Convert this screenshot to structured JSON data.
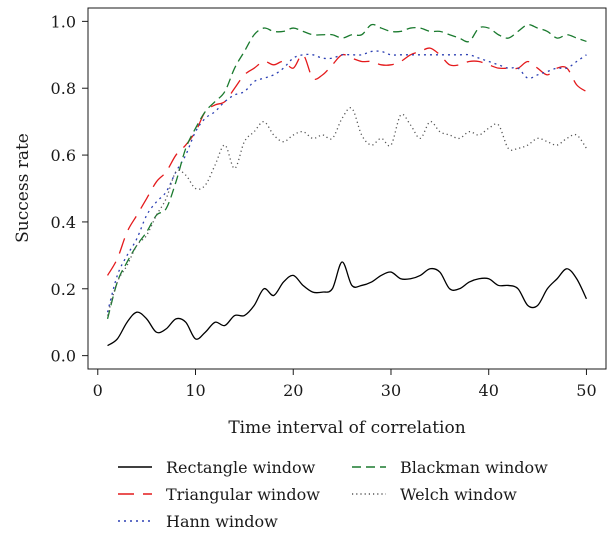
{
  "chart_data": {
    "type": "line",
    "title": "",
    "xlabel": "Time interval of correlation",
    "ylabel": "Success rate",
    "xlim": [
      -1,
      52
    ],
    "ylim": [
      -0.04,
      1.04
    ],
    "xticks": [
      0,
      10,
      20,
      30,
      40,
      50
    ],
    "yticks": [
      0.0,
      0.2,
      0.4,
      0.6,
      0.8,
      1.0
    ],
    "xtick_labels": [
      "0",
      "10",
      "20",
      "30",
      "40",
      "50"
    ],
    "ytick_labels": [
      "0.0",
      "0.2",
      "0.4",
      "0.6",
      "0.8",
      "1.0"
    ],
    "grid": false,
    "legend_position": "below",
    "series": [
      {
        "name": "Rectangle window",
        "color": "#000000",
        "dash": "solid",
        "x": [
          1,
          2,
          3,
          4,
          5,
          6,
          7,
          8,
          9,
          10,
          11,
          12,
          13,
          14,
          15,
          16,
          17,
          18,
          19,
          20,
          21,
          22,
          23,
          24,
          25,
          26,
          27,
          28,
          29,
          30,
          31,
          32,
          33,
          34,
          35,
          36,
          37,
          38,
          39,
          40,
          41,
          42,
          43,
          44,
          45,
          46,
          47,
          48,
          49,
          50
        ],
        "y": [
          0.03,
          0.05,
          0.1,
          0.13,
          0.11,
          0.07,
          0.08,
          0.11,
          0.1,
          0.05,
          0.07,
          0.1,
          0.09,
          0.12,
          0.12,
          0.15,
          0.2,
          0.18,
          0.22,
          0.24,
          0.21,
          0.19,
          0.19,
          0.2,
          0.28,
          0.21,
          0.21,
          0.22,
          0.24,
          0.25,
          0.23,
          0.23,
          0.24,
          0.26,
          0.25,
          0.2,
          0.2,
          0.22,
          0.23,
          0.23,
          0.21,
          0.21,
          0.2,
          0.15,
          0.15,
          0.2,
          0.23,
          0.26,
          0.23,
          0.17
        ]
      },
      {
        "name": "Triangular window",
        "color": "#e41a1c",
        "dash": "long",
        "x": [
          1,
          2,
          3,
          4,
          5,
          6,
          7,
          8,
          9,
          10,
          11,
          12,
          13,
          14,
          15,
          16,
          17,
          18,
          19,
          20,
          21,
          22,
          23,
          24,
          25,
          26,
          27,
          28,
          29,
          30,
          31,
          32,
          33,
          34,
          35,
          36,
          37,
          38,
          39,
          40,
          41,
          42,
          43,
          44,
          45,
          46,
          47,
          48,
          49,
          50
        ],
        "y": [
          0.24,
          0.29,
          0.37,
          0.42,
          0.47,
          0.52,
          0.55,
          0.6,
          0.63,
          0.67,
          0.73,
          0.75,
          0.76,
          0.8,
          0.84,
          0.86,
          0.88,
          0.87,
          0.88,
          0.86,
          0.9,
          0.83,
          0.84,
          0.87,
          0.9,
          0.89,
          0.88,
          0.88,
          0.87,
          0.87,
          0.88,
          0.9,
          0.91,
          0.92,
          0.9,
          0.87,
          0.87,
          0.88,
          0.88,
          0.87,
          0.86,
          0.86,
          0.86,
          0.88,
          0.86,
          0.84,
          0.86,
          0.86,
          0.81,
          0.79
        ]
      },
      {
        "name": "Hann window",
        "color": "#2b3fb3",
        "dash": "dotted",
        "x": [
          1,
          2,
          3,
          4,
          5,
          6,
          7,
          8,
          9,
          10,
          11,
          12,
          13,
          14,
          15,
          16,
          17,
          18,
          19,
          20,
          21,
          22,
          23,
          24,
          25,
          26,
          27,
          28,
          29,
          30,
          31,
          32,
          33,
          34,
          35,
          36,
          37,
          38,
          39,
          40,
          41,
          42,
          43,
          44,
          45,
          46,
          47,
          48,
          49,
          50
        ],
        "y": [
          0.13,
          0.24,
          0.3,
          0.35,
          0.42,
          0.46,
          0.49,
          0.55,
          0.6,
          0.67,
          0.71,
          0.73,
          0.76,
          0.78,
          0.79,
          0.82,
          0.83,
          0.84,
          0.86,
          0.89,
          0.9,
          0.9,
          0.89,
          0.89,
          0.9,
          0.9,
          0.9,
          0.91,
          0.91,
          0.9,
          0.9,
          0.9,
          0.9,
          0.9,
          0.9,
          0.9,
          0.9,
          0.9,
          0.89,
          0.88,
          0.87,
          0.86,
          0.86,
          0.83,
          0.84,
          0.85,
          0.86,
          0.86,
          0.88,
          0.9
        ]
      },
      {
        "name": "Blackman window",
        "color": "#1a7a2e",
        "dash": "dashed",
        "x": [
          1,
          2,
          3,
          4,
          5,
          6,
          7,
          8,
          9,
          10,
          11,
          12,
          13,
          14,
          15,
          16,
          17,
          18,
          19,
          20,
          21,
          22,
          23,
          24,
          25,
          26,
          27,
          28,
          29,
          30,
          31,
          32,
          33,
          34,
          35,
          36,
          37,
          38,
          39,
          40,
          41,
          42,
          43,
          44,
          45,
          46,
          47,
          48,
          49,
          50
        ],
        "y": [
          0.11,
          0.22,
          0.28,
          0.33,
          0.37,
          0.42,
          0.44,
          0.52,
          0.62,
          0.68,
          0.73,
          0.76,
          0.79,
          0.86,
          0.91,
          0.96,
          0.98,
          0.97,
          0.97,
          0.98,
          0.97,
          0.96,
          0.96,
          0.96,
          0.95,
          0.96,
          0.96,
          0.99,
          0.98,
          0.97,
          0.97,
          0.98,
          0.98,
          0.97,
          0.97,
          0.96,
          0.95,
          0.94,
          0.98,
          0.98,
          0.96,
          0.95,
          0.97,
          0.99,
          0.98,
          0.97,
          0.95,
          0.96,
          0.95,
          0.94
        ]
      },
      {
        "name": "Welch window",
        "color": "#555555",
        "dash": "fine",
        "x": [
          1,
          2,
          3,
          4,
          5,
          6,
          7,
          8,
          9,
          10,
          11,
          12,
          13,
          14,
          15,
          16,
          17,
          18,
          19,
          20,
          21,
          22,
          23,
          24,
          25,
          26,
          27,
          28,
          29,
          30,
          31,
          32,
          33,
          34,
          35,
          36,
          37,
          38,
          39,
          40,
          41,
          42,
          43,
          44,
          45,
          46,
          47,
          48,
          49,
          50
        ],
        "y": [
          0.12,
          0.22,
          0.27,
          0.33,
          0.36,
          0.42,
          0.47,
          0.55,
          0.54,
          0.5,
          0.51,
          0.57,
          0.63,
          0.56,
          0.64,
          0.67,
          0.7,
          0.66,
          0.64,
          0.66,
          0.67,
          0.65,
          0.66,
          0.65,
          0.71,
          0.74,
          0.66,
          0.63,
          0.65,
          0.63,
          0.72,
          0.69,
          0.65,
          0.7,
          0.67,
          0.66,
          0.65,
          0.67,
          0.66,
          0.68,
          0.69,
          0.62,
          0.62,
          0.63,
          0.65,
          0.64,
          0.63,
          0.65,
          0.66,
          0.62
        ]
      }
    ]
  }
}
